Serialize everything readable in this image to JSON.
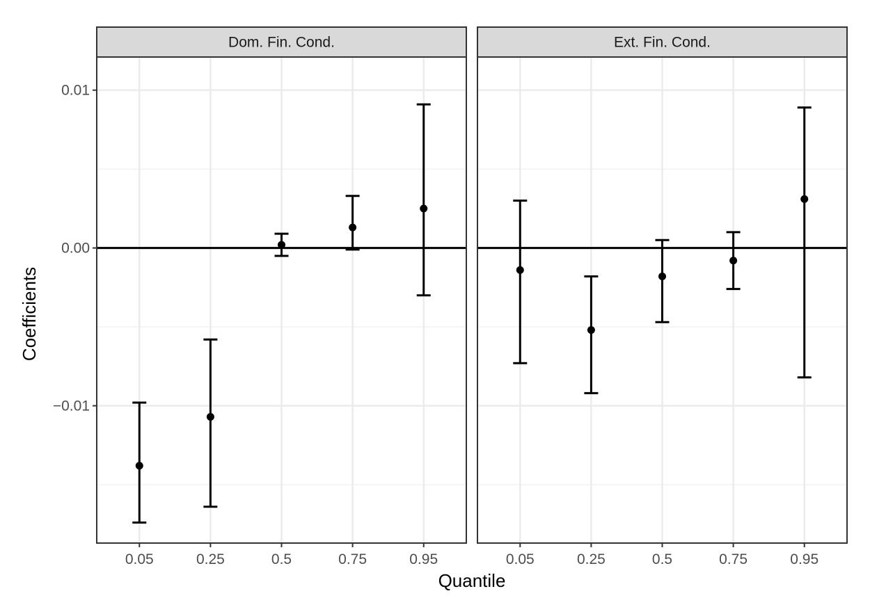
{
  "chart_data": {
    "type": "errorbar",
    "xlabel": "Quantile",
    "ylabel": "Coefficients",
    "ylim": [
      -0.0187,
      0.0121
    ],
    "y_ticks": [
      0.01,
      0.0,
      -0.01
    ],
    "y_tick_labels": [
      "0.01",
      "0.00",
      "−0.01"
    ],
    "categories": [
      "0.05",
      "0.25",
      "0.5",
      "0.75",
      "0.95"
    ],
    "reference_line": 0,
    "grid": true,
    "panels": [
      {
        "strip": "Dom. Fin. Cond.",
        "points": [
          {
            "x": "0.05",
            "estimate": -0.0138,
            "lower": -0.0174,
            "upper": -0.0098
          },
          {
            "x": "0.25",
            "estimate": -0.0107,
            "lower": -0.0164,
            "upper": -0.0058
          },
          {
            "x": "0.5",
            "estimate": 0.0002,
            "lower": -0.0005,
            "upper": 0.0009
          },
          {
            "x": "0.75",
            "estimate": 0.0013,
            "lower": -0.0001,
            "upper": 0.0033
          },
          {
            "x": "0.95",
            "estimate": 0.0025,
            "lower": -0.003,
            "upper": 0.0091
          }
        ]
      },
      {
        "strip": "Ext. Fin. Cond.",
        "points": [
          {
            "x": "0.05",
            "estimate": -0.0014,
            "lower": -0.0073,
            "upper": 0.003
          },
          {
            "x": "0.25",
            "estimate": -0.0052,
            "lower": -0.0092,
            "upper": -0.0018
          },
          {
            "x": "0.5",
            "estimate": -0.0018,
            "lower": -0.0047,
            "upper": 0.0005
          },
          {
            "x": "0.75",
            "estimate": -0.0008,
            "lower": -0.0026,
            "upper": 0.001
          },
          {
            "x": "0.95",
            "estimate": 0.0031,
            "lower": -0.0082,
            "upper": 0.0089
          }
        ]
      }
    ]
  }
}
